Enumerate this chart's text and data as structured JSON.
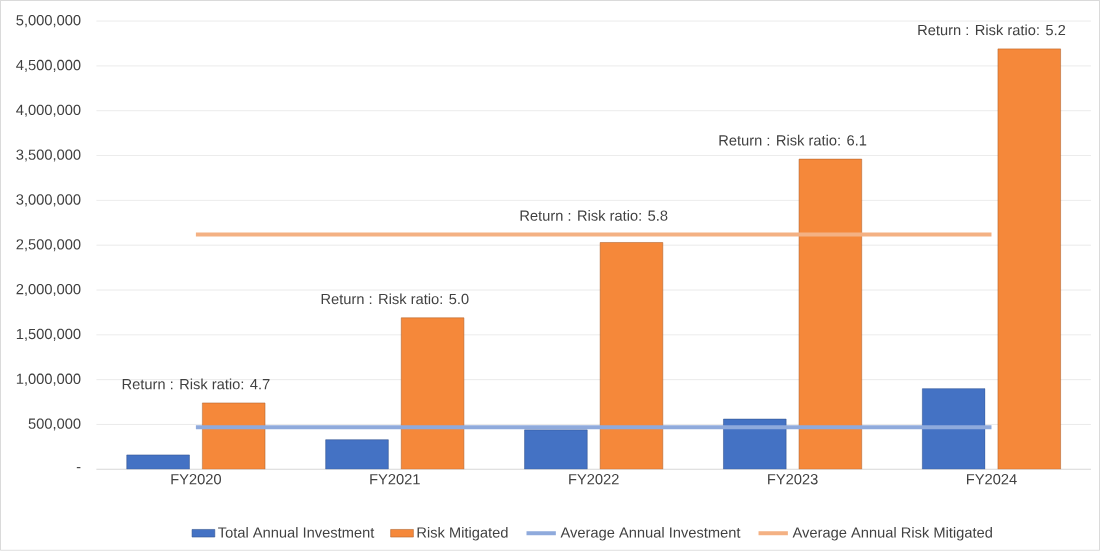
{
  "chart_data": {
    "type": "bar",
    "categories": [
      "FY2020",
      "FY2021",
      "FY2022",
      "FY2023",
      "FY2024"
    ],
    "series": [
      {
        "name": "Total Annual Investment",
        "color": "#4472c4",
        "values": [
          160000,
          330000,
          440000,
          560000,
          900000
        ]
      },
      {
        "name": "Risk Mitigated",
        "color": "#f5883a",
        "values": [
          740000,
          1690000,
          2530000,
          3460000,
          4690000
        ]
      },
      {
        "name": "Average Annual Investment",
        "type": "line",
        "color": "#8faadc",
        "values": [
          470000,
          470000,
          470000,
          470000,
          470000
        ]
      },
      {
        "name": "Average Annual Risk Mitigated",
        "type": "line",
        "color": "#f4b183",
        "values": [
          2620000,
          2620000,
          2620000,
          2620000,
          2620000
        ]
      }
    ],
    "ylim": [
      0,
      5000000
    ],
    "yticks": [
      {
        "value": 0,
        "label": "-"
      },
      {
        "value": 500000,
        "label": "500,000"
      },
      {
        "value": 1000000,
        "label": "1,000,000"
      },
      {
        "value": 1500000,
        "label": "1,500,000"
      },
      {
        "value": 2000000,
        "label": "2,000,000"
      },
      {
        "value": 2500000,
        "label": "2,500,000"
      },
      {
        "value": 3000000,
        "label": "3,000,000"
      },
      {
        "value": 3500000,
        "label": "3,500,000"
      },
      {
        "value": 4000000,
        "label": "4,000,000"
      },
      {
        "value": 4500000,
        "label": "4,500,000"
      },
      {
        "value": 5000000,
        "label": "5,000,000"
      }
    ],
    "annotations": [
      "Return : Risk ratio: 4.7",
      "Return : Risk ratio: 5.0",
      "Return : Risk ratio: 5.8",
      "Return : Risk ratio: 6.1",
      "Return : Risk ratio: 5.2"
    ],
    "grid": "y",
    "legend": "bottom"
  }
}
